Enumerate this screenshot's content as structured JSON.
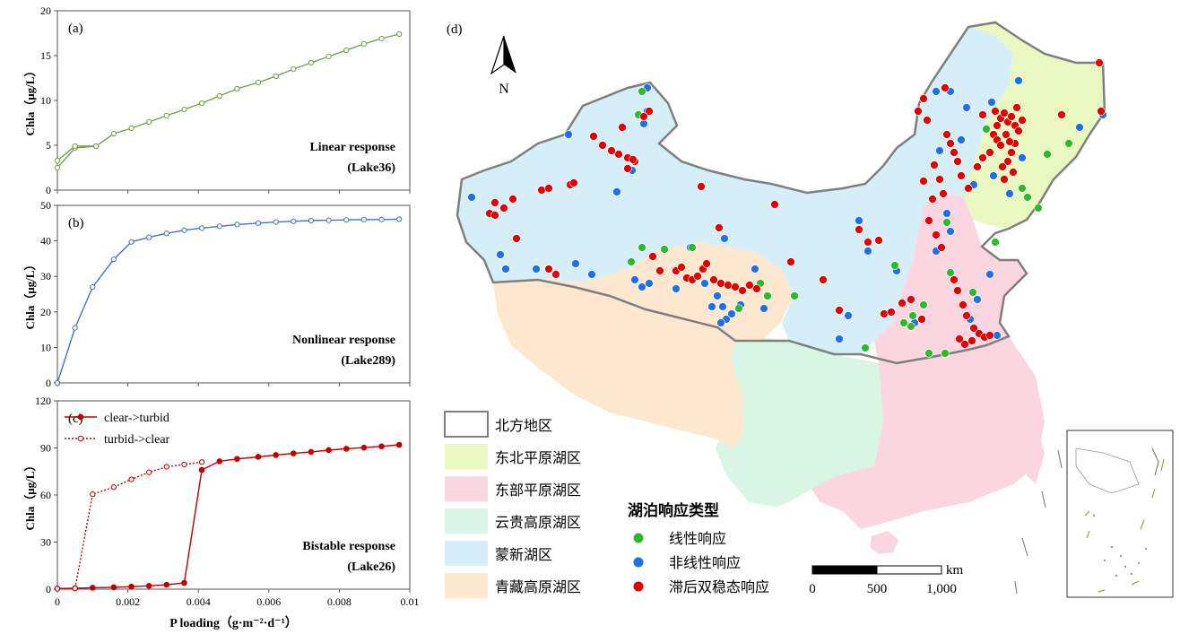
{
  "chart_data": [
    {
      "type": "line",
      "panel_label": "(a)",
      "annotation": [
        "Linear response",
        "(Lake36)"
      ],
      "ylabel": "Chla（μg/L）",
      "xlim": [
        0,
        0.01
      ],
      "ylim": [
        0,
        20
      ],
      "yticks": [
        "0",
        "5",
        "10",
        "15",
        "20"
      ],
      "series": [
        {
          "x": [
            0,
            0.0005,
            0.0011,
            0.0016,
            0.0021,
            0.0026,
            0.0031,
            0.0036,
            0.0041,
            0.0046,
            0.0051,
            0.0057,
            0.0062,
            0.0067,
            0.0072,
            0.0077,
            0.0082,
            0.0087,
            0.0092,
            0.0097
          ],
          "values": [
            2.5,
            4.7,
            4.9,
            6.3,
            6.9,
            7.6,
            8.3,
            9.0,
            9.7,
            10.5,
            11.3,
            12.0,
            12.7,
            13.5,
            14.2,
            14.9,
            15.6,
            16.3,
            16.9,
            17.4
          ]
        },
        {
          "x": [
            0,
            0.0005,
            0.0011
          ],
          "values": [
            3.3,
            4.9,
            4.9
          ]
        }
      ],
      "color": "#70a048"
    },
    {
      "type": "line",
      "panel_label": "(b)",
      "annotation": [
        "Nonlinear response",
        "(Lake289)"
      ],
      "ylabel": "Chla（μg/L）",
      "xlim": [
        0,
        0.01
      ],
      "ylim": [
        0,
        50
      ],
      "yticks": [
        "0",
        "10",
        "20",
        "30",
        "40",
        "50"
      ],
      "series": [
        {
          "x": [
            0,
            0.0005,
            0.001,
            0.0016,
            0.0021,
            0.0026,
            0.0031,
            0.0036,
            0.0041,
            0.0046,
            0.0051,
            0.0057,
            0.0062,
            0.0067,
            0.0072,
            0.0077,
            0.0082,
            0.0087,
            0.0092,
            0.0097
          ],
          "values": [
            0,
            15.5,
            27.0,
            34.8,
            39.7,
            41.0,
            42.1,
            43.0,
            43.6,
            44.1,
            44.6,
            45.0,
            45.3,
            45.5,
            45.7,
            45.8,
            45.9,
            46.0,
            46.0,
            46.1
          ]
        }
      ],
      "color": "#4472c4"
    },
    {
      "type": "line",
      "panel_label": "(c)",
      "annotation": [
        "Bistable response",
        "(Lake26)"
      ],
      "xlabel": "P loading（g·m⁻²·d⁻¹）",
      "ylabel": "Chla（μg/L）",
      "xlim": [
        0,
        0.01
      ],
      "ylim": [
        0,
        120
      ],
      "yticks": [
        "0",
        "30",
        "60",
        "90",
        "120"
      ],
      "xticks": [
        "0",
        "0.002",
        "0.004",
        "0.006",
        "0.008",
        "0.01"
      ],
      "legend_position": "top-left",
      "series": [
        {
          "name": "clear->turbid",
          "x": [
            0,
            0.0005,
            0.001,
            0.0016,
            0.0021,
            0.0026,
            0.0031,
            0.0036,
            0.0041,
            0.0046,
            0.0051,
            0.0057,
            0.0062,
            0.0067,
            0.0072,
            0.0077,
            0.0082,
            0.0087,
            0.0092,
            0.0097
          ],
          "values": [
            0.4,
            0.6,
            0.9,
            1.2,
            1.6,
            2.1,
            2.8,
            4.0,
            76.0,
            81.5,
            83.0,
            84.3,
            85.5,
            86.5,
            87.5,
            88.6,
            89.5,
            90.2,
            91.0,
            92.0
          ],
          "style": "solid"
        },
        {
          "name": "turbid->clear",
          "x": [
            0,
            0.0005,
            0.001,
            0.0016,
            0.0021,
            0.0026,
            0.0031,
            0.0036,
            0.0041
          ],
          "values": [
            0.3,
            0.5,
            60.5,
            65.0,
            70.0,
            74.5,
            78.0,
            79.5,
            81.0
          ],
          "style": "dotted"
        }
      ],
      "color": "#c00000"
    }
  ],
  "map": {
    "panel_label": "(d)",
    "north_label": "N",
    "legend_regions": [
      {
        "label": "北方地区",
        "color": "#ffffff",
        "border": "#7f7f7f"
      },
      {
        "label": "东北平原湖区",
        "color": "#e8f8c0"
      },
      {
        "label": "东部平原湖区",
        "color": "#fbd5e0"
      },
      {
        "label": "云贵高原湖区",
        "color": "#d9f5e4"
      },
      {
        "label": "蒙新湖区",
        "color": "#d5eef7"
      },
      {
        "label": "青藏高原湖区",
        "color": "#fde8cf"
      }
    ],
    "response_legend_title": "湖泊响应类型",
    "response_types": [
      {
        "label": "线性响应",
        "color": "#2eb82e"
      },
      {
        "label": "非线性响应",
        "color": "#1f6fe5"
      },
      {
        "label": "滞后双稳态响应",
        "color": "#e00000"
      }
    ],
    "scale_bar": {
      "unit": "km",
      "labels": [
        "0",
        "500",
        "1,000"
      ]
    },
    "lakes": {
      "linear": [
        [
          716,
          102
        ],
        [
          712,
          128
        ],
        [
          704,
          292
        ],
        [
          716,
          276
        ],
        [
          741,
          278
        ],
        [
          824,
          344
        ],
        [
          848,
          316
        ],
        [
          886,
          330
        ],
        [
          965,
          388
        ],
        [
          998,
          296
        ],
        [
          1008,
          360
        ],
        [
          1016,
          364
        ],
        [
          1036,
          394
        ],
        [
          1054,
          394
        ],
        [
          1056,
          248
        ],
        [
          1060,
          304
        ],
        [
          1085,
          326
        ],
        [
          1100,
          144
        ],
        [
          1110,
          270
        ],
        [
          1140,
          210
        ],
        [
          1146,
          220
        ],
        [
          1158,
          232
        ],
        [
          1168,
          172
        ],
        [
          1192,
          160
        ],
        [
          772,
          276
        ],
        [
          856,
          330
        ],
        [
          1018,
          352
        ],
        [
          1030,
          340
        ]
      ],
      "nonlinear": [
        [
          722,
          98
        ],
        [
          718,
          138
        ],
        [
          722,
          124
        ],
        [
          634,
          150
        ],
        [
          526,
          220
        ],
        [
          558,
          284
        ],
        [
          564,
          300
        ],
        [
          598,
          300
        ],
        [
          642,
          294
        ],
        [
          660,
          306
        ],
        [
          688,
          214
        ],
        [
          705,
          190
        ],
        [
          770,
          276
        ],
        [
          808,
          266
        ],
        [
          842,
          300
        ],
        [
          800,
          330
        ],
        [
          806,
          342
        ],
        [
          816,
          350
        ],
        [
          826,
          340
        ],
        [
          810,
          356
        ],
        [
          794,
          342
        ],
        [
          804,
          360
        ],
        [
          754,
          322
        ],
        [
          716,
          320
        ],
        [
          724,
          316
        ],
        [
          708,
          312
        ],
        [
          786,
          316
        ],
        [
          852,
          344
        ],
        [
          936,
          378
        ],
        [
          946,
          352
        ],
        [
          958,
          246
        ],
        [
          968,
          280
        ],
        [
          1000,
          302
        ],
        [
          1020,
          360
        ],
        [
          1044,
          102
        ],
        [
          1060,
          102
        ],
        [
          1078,
          120
        ],
        [
          1048,
          168
        ],
        [
          1072,
          156
        ],
        [
          1106,
          114
        ],
        [
          1136,
          90
        ],
        [
          1108,
          196
        ],
        [
          1126,
          216
        ],
        [
          1140,
          176
        ],
        [
          1060,
          258
        ],
        [
          1056,
          238
        ],
        [
          1044,
          280
        ],
        [
          1082,
          356
        ],
        [
          1090,
          334
        ],
        [
          1104,
          306
        ],
        [
          1112,
          374
        ],
        [
          1086,
          206
        ],
        [
          1230,
          128
        ],
        [
          1204,
          142
        ]
      ],
      "bistable": [
        [
          724,
          124
        ],
        [
          718,
          130
        ],
        [
          694,
          142
        ],
        [
          662,
          152
        ],
        [
          672,
          162
        ],
        [
          682,
          168
        ],
        [
          690,
          172
        ],
        [
          700,
          176
        ],
        [
          708,
          180
        ],
        [
          700,
          188
        ],
        [
          706,
          178
        ],
        [
          572,
          222
        ],
        [
          552,
          226
        ],
        [
          562,
          232
        ],
        [
          546,
          238
        ],
        [
          552,
          240
        ],
        [
          604,
          212
        ],
        [
          612,
          210
        ],
        [
          636,
          206
        ],
        [
          640,
          204
        ],
        [
          576,
          266
        ],
        [
          612,
          300
        ],
        [
          620,
          306
        ],
        [
          728,
          286
        ],
        [
          736,
          302
        ],
        [
          754,
          302
        ],
        [
          760,
          298
        ],
        [
          766,
          310
        ],
        [
          772,
          312
        ],
        [
          778,
          308
        ],
        [
          784,
          300
        ],
        [
          788,
          294
        ],
        [
          796,
          312
        ],
        [
          804,
          316
        ],
        [
          812,
          318
        ],
        [
          820,
          320
        ],
        [
          828,
          324
        ],
        [
          836,
          318
        ],
        [
          844,
          322
        ],
        [
          782,
          208
        ],
        [
          802,
          254
        ],
        [
          864,
          228
        ],
        [
          882,
          292
        ],
        [
          918,
          312
        ],
        [
          936,
          346
        ],
        [
          958,
          256
        ],
        [
          968,
          270
        ],
        [
          980,
          268
        ],
        [
          986,
          350
        ],
        [
          994,
          348
        ],
        [
          1006,
          338
        ],
        [
          1016,
          334
        ],
        [
          1028,
          356
        ],
        [
          1030,
          202
        ],
        [
          1042,
          184
        ],
        [
          1048,
          200
        ],
        [
          1052,
          216
        ],
        [
          1040,
          222
        ],
        [
          1036,
          246
        ],
        [
          1044,
          262
        ],
        [
          1050,
          276
        ],
        [
          1064,
          312
        ],
        [
          1068,
          324
        ],
        [
          1074,
          340
        ],
        [
          1078,
          352
        ],
        [
          1086,
          366
        ],
        [
          1092,
          372
        ],
        [
          1098,
          376
        ],
        [
          1104,
          374
        ],
        [
          1070,
          378
        ],
        [
          1076,
          384
        ],
        [
          1084,
          380
        ],
        [
          1056,
          150
        ],
        [
          1060,
          160
        ],
        [
          1064,
          170
        ],
        [
          1068,
          180
        ],
        [
          1072,
          196
        ],
        [
          1080,
          210
        ],
        [
          1090,
          186
        ],
        [
          1096,
          176
        ],
        [
          1104,
          170
        ],
        [
          1108,
          150
        ],
        [
          1112,
          140
        ],
        [
          1116,
          132
        ],
        [
          1120,
          126
        ],
        [
          1124,
          136
        ],
        [
          1128,
          130
        ],
        [
          1132,
          140
        ],
        [
          1136,
          146
        ],
        [
          1140,
          134
        ],
        [
          1132,
          160
        ],
        [
          1128,
          170
        ],
        [
          1124,
          180
        ],
        [
          1118,
          186
        ],
        [
          1130,
          192
        ],
        [
          1120,
          200
        ],
        [
          1112,
          156
        ],
        [
          1116,
          162
        ],
        [
          1122,
          150
        ],
        [
          1126,
          158
        ],
        [
          1134,
          120
        ],
        [
          1110,
          124
        ],
        [
          1096,
          128
        ],
        [
          1184,
          128
        ],
        [
          1226,
          70
        ],
        [
          1228,
          124
        ],
        [
          1054,
          98
        ],
        [
          1030,
          110
        ],
        [
          1024,
          124
        ],
        [
          1034,
          134
        ]
      ]
    }
  }
}
